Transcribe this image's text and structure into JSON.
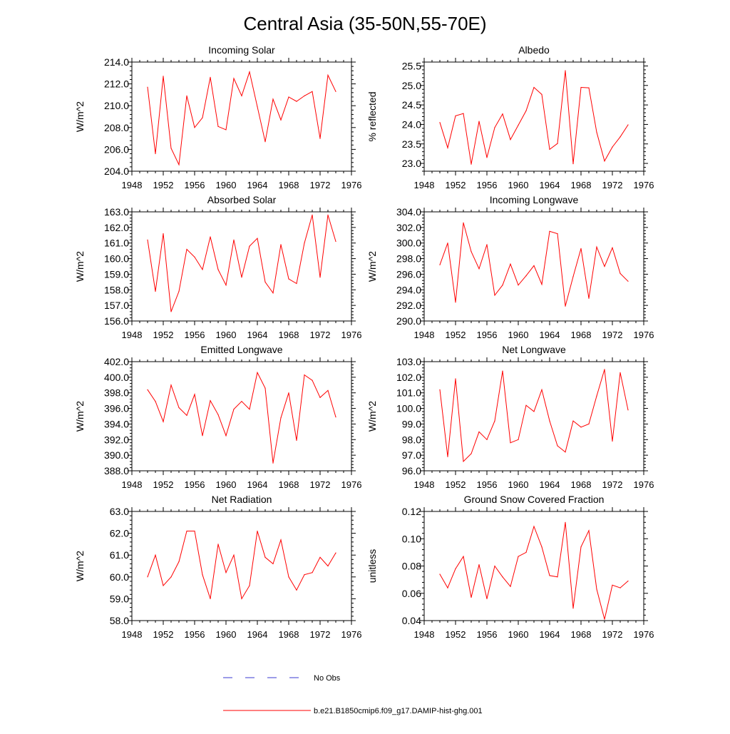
{
  "figure_title": "Central Asia (35-50N,55-70E)",
  "legend": [
    {
      "label": "No Obs",
      "color": "#3a3ad0",
      "style": "dashed"
    },
    {
      "label": "b.e21.B1850cmip6.f09_g17.DAMIP-hist-ghg.001",
      "color": "#ff0000",
      "style": "solid"
    }
  ],
  "chart_data": [
    {
      "type": "line",
      "title": "Incoming Solar",
      "ylabel": "W/m^2",
      "xlim": [
        1948,
        1976
      ],
      "ylim": [
        204.0,
        214.0
      ],
      "xticks": [
        1948,
        1952,
        1956,
        1960,
        1964,
        1968,
        1972,
        1976
      ],
      "yticks": [
        204.0,
        206.0,
        208.0,
        210.0,
        212.0,
        214.0
      ],
      "ytick_decimals": 1,
      "x": [
        1950,
        1951,
        1952,
        1953,
        1954,
        1955,
        1956,
        1957,
        1958,
        1959,
        1960,
        1961,
        1962,
        1963,
        1964,
        1965,
        1966,
        1967,
        1968,
        1969,
        1970,
        1971,
        1972,
        1973,
        1974
      ],
      "series": [
        {
          "color": "#ff0000",
          "values": [
            211.7,
            205.6,
            212.7,
            206.1,
            204.6,
            210.9,
            208.0,
            208.9,
            212.6,
            208.1,
            207.8,
            212.5,
            210.9,
            213.1,
            209.9,
            206.7,
            210.6,
            208.7,
            210.8,
            210.4,
            210.9,
            211.3,
            207.0,
            212.8,
            211.3
          ]
        }
      ]
    },
    {
      "type": "line",
      "title": "Albedo",
      "ylabel": "% reflected",
      "xlim": [
        1948,
        1976
      ],
      "ylim": [
        22.8,
        25.6
      ],
      "xticks": [
        1948,
        1952,
        1956,
        1960,
        1964,
        1968,
        1972,
        1976
      ],
      "yticks": [
        23.0,
        23.5,
        24.0,
        24.5,
        25.0,
        25.5
      ],
      "ytick_decimals": 1,
      "x": [
        1950,
        1951,
        1952,
        1953,
        1954,
        1955,
        1956,
        1957,
        1958,
        1959,
        1960,
        1961,
        1962,
        1963,
        1964,
        1965,
        1966,
        1967,
        1968,
        1969,
        1970,
        1971,
        1972,
        1973,
        1974
      ],
      "series": [
        {
          "color": "#ff0000",
          "values": [
            24.05,
            23.4,
            24.22,
            24.28,
            22.98,
            24.08,
            23.15,
            23.92,
            24.27,
            23.61,
            23.98,
            24.35,
            24.95,
            24.77,
            23.36,
            23.51,
            25.38,
            22.99,
            24.95,
            24.94,
            23.8,
            23.06,
            23.42,
            23.68,
            23.99
          ]
        }
      ]
    },
    {
      "type": "line",
      "title": "Absorbed Solar",
      "ylabel": "W/m^2",
      "xlim": [
        1948,
        1976
      ],
      "ylim": [
        156.0,
        163.0
      ],
      "xticks": [
        1948,
        1952,
        1956,
        1960,
        1964,
        1968,
        1972,
        1976
      ],
      "yticks": [
        156.0,
        157.0,
        158.0,
        159.0,
        160.0,
        161.0,
        162.0,
        163.0
      ],
      "ytick_decimals": 1,
      "x": [
        1950,
        1951,
        1952,
        1953,
        1954,
        1955,
        1956,
        1957,
        1958,
        1959,
        1960,
        1961,
        1962,
        1963,
        1964,
        1965,
        1966,
        1967,
        1968,
        1969,
        1970,
        1971,
        1972,
        1973,
        1974
      ],
      "series": [
        {
          "color": "#ff0000",
          "values": [
            161.2,
            157.9,
            161.6,
            156.6,
            157.9,
            160.6,
            160.1,
            159.3,
            161.4,
            159.3,
            158.3,
            161.2,
            158.8,
            160.8,
            161.3,
            158.5,
            157.8,
            160.9,
            158.7,
            158.4,
            161.0,
            162.8,
            158.8,
            162.8,
            161.1
          ]
        }
      ]
    },
    {
      "type": "line",
      "title": "Incoming Longwave",
      "ylabel": "W/m^2",
      "xlim": [
        1948,
        1976
      ],
      "ylim": [
        290.0,
        304.0
      ],
      "xticks": [
        1948,
        1952,
        1956,
        1960,
        1964,
        1968,
        1972,
        1976
      ],
      "yticks": [
        290.0,
        292.0,
        294.0,
        296.0,
        298.0,
        300.0,
        302.0,
        304.0
      ],
      "ytick_decimals": 1,
      "x": [
        1950,
        1951,
        1952,
        1953,
        1954,
        1955,
        1956,
        1957,
        1958,
        1959,
        1960,
        1961,
        1962,
        1963,
        1964,
        1965,
        1966,
        1967,
        1968,
        1969,
        1970,
        1971,
        1972,
        1973,
        1974
      ],
      "series": [
        {
          "color": "#ff0000",
          "values": [
            297.2,
            300.0,
            292.4,
            302.6,
            298.9,
            296.7,
            299.8,
            293.3,
            294.6,
            297.3,
            294.6,
            295.8,
            297.1,
            294.7,
            301.5,
            301.2,
            291.9,
            295.7,
            299.3,
            292.9,
            299.5,
            297.0,
            299.4,
            296.1,
            295.1
          ]
        }
      ]
    },
    {
      "type": "line",
      "title": "Emitted Longwave",
      "ylabel": "W/m^2",
      "xlim": [
        1948,
        1976
      ],
      "ylim": [
        388.0,
        402.0
      ],
      "xticks": [
        1948,
        1952,
        1956,
        1960,
        1964,
        1968,
        1972,
        1976
      ],
      "yticks": [
        388.0,
        390.0,
        392.0,
        394.0,
        396.0,
        398.0,
        400.0,
        402.0
      ],
      "ytick_decimals": 1,
      "x": [
        1950,
        1951,
        1952,
        1953,
        1954,
        1955,
        1956,
        1957,
        1958,
        1959,
        1960,
        1961,
        1962,
        1963,
        1964,
        1965,
        1966,
        1967,
        1968,
        1969,
        1970,
        1971,
        1972,
        1973,
        1974
      ],
      "series": [
        {
          "color": "#ff0000",
          "values": [
            398.4,
            396.9,
            394.3,
            399.0,
            396.1,
            395.1,
            397.8,
            392.5,
            397.0,
            395.2,
            392.5,
            395.9,
            396.9,
            395.9,
            400.6,
            398.6,
            389.0,
            394.8,
            398.0,
            391.9,
            400.3,
            399.6,
            397.4,
            398.3,
            394.9
          ]
        }
      ]
    },
    {
      "type": "line",
      "title": "Net Longwave",
      "ylabel": "W/m^2",
      "xlim": [
        1948,
        1976
      ],
      "ylim": [
        96.0,
        103.0
      ],
      "xticks": [
        1948,
        1952,
        1956,
        1960,
        1964,
        1968,
        1972,
        1976
      ],
      "yticks": [
        96.0,
        97.0,
        98.0,
        99.0,
        100.0,
        101.0,
        102.0,
        103.0
      ],
      "ytick_decimals": 1,
      "x": [
        1950,
        1951,
        1952,
        1953,
        1954,
        1955,
        1956,
        1957,
        1958,
        1959,
        1960,
        1961,
        1962,
        1963,
        1964,
        1965,
        1966,
        1967,
        1968,
        1969,
        1970,
        1971,
        1972,
        1973,
        1974
      ],
      "series": [
        {
          "color": "#ff0000",
          "values": [
            101.2,
            96.9,
            101.9,
            96.6,
            97.1,
            98.5,
            98.0,
            99.2,
            102.4,
            97.8,
            98.0,
            100.2,
            99.8,
            101.2,
            99.2,
            97.6,
            97.2,
            99.2,
            98.8,
            99.0,
            100.8,
            102.5,
            97.9,
            102.3,
            99.9
          ]
        }
      ]
    },
    {
      "type": "line",
      "title": "Net Radiation",
      "ylabel": "W/m^2",
      "xlim": [
        1948,
        1976
      ],
      "ylim": [
        58.0,
        63.0
      ],
      "xticks": [
        1948,
        1952,
        1956,
        1960,
        1964,
        1968,
        1972,
        1976
      ],
      "yticks": [
        58.0,
        59.0,
        60.0,
        61.0,
        62.0,
        63.0
      ],
      "ytick_decimals": 1,
      "x": [
        1950,
        1951,
        1952,
        1953,
        1954,
        1955,
        1956,
        1957,
        1958,
        1959,
        1960,
        1961,
        1962,
        1963,
        1964,
        1965,
        1966,
        1967,
        1968,
        1969,
        1970,
        1971,
        1972,
        1973,
        1974
      ],
      "series": [
        {
          "color": "#ff0000",
          "values": [
            60.0,
            61.0,
            59.6,
            60.0,
            60.7,
            62.1,
            62.1,
            60.1,
            59.0,
            61.5,
            60.2,
            61.0,
            59.0,
            59.6,
            62.1,
            60.9,
            60.6,
            61.7,
            60.0,
            59.4,
            60.1,
            60.2,
            60.9,
            60.5,
            61.1
          ]
        }
      ]
    },
    {
      "type": "line",
      "title": "Ground Snow Covered Fraction",
      "ylabel": "unitless",
      "xlim": [
        1948,
        1976
      ],
      "ylim": [
        0.04,
        0.12
      ],
      "xticks": [
        1948,
        1952,
        1956,
        1960,
        1964,
        1968,
        1972,
        1976
      ],
      "yticks": [
        0.04,
        0.06,
        0.08,
        0.1,
        0.12
      ],
      "ytick_decimals": 2,
      "x": [
        1950,
        1951,
        1952,
        1953,
        1954,
        1955,
        1956,
        1957,
        1958,
        1959,
        1960,
        1961,
        1962,
        1963,
        1964,
        1965,
        1966,
        1967,
        1968,
        1969,
        1970,
        1971,
        1972,
        1973,
        1974
      ],
      "series": [
        {
          "color": "#ff0000",
          "values": [
            0.074,
            0.064,
            0.078,
            0.087,
            0.057,
            0.081,
            0.056,
            0.08,
            0.072,
            0.065,
            0.087,
            0.09,
            0.109,
            0.094,
            0.073,
            0.072,
            0.112,
            0.049,
            0.094,
            0.106,
            0.063,
            0.041,
            0.066,
            0.064,
            0.069
          ]
        }
      ]
    }
  ]
}
